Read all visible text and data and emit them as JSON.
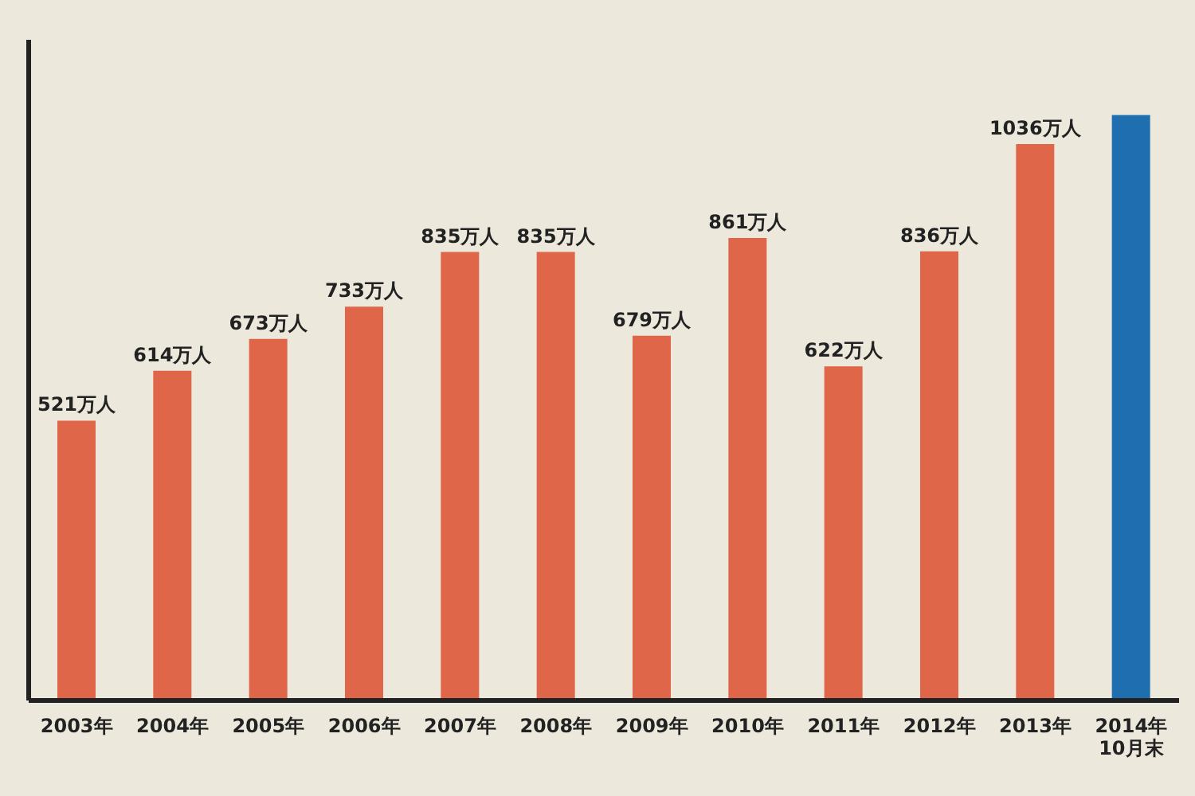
{
  "chart_data": {
    "type": "bar",
    "categories": [
      "2003年",
      "2004年",
      "2005年",
      "2006年",
      "2007年",
      "2008年",
      "2009年",
      "2010年",
      "2011年",
      "2012年",
      "2013年",
      "2014年\n10月末"
    ],
    "values": [
      521,
      614,
      673,
      733,
      835,
      835,
      679,
      861,
      622,
      836,
      1036,
      1090
    ],
    "colors": [
      "#e0664a",
      "#e0664a",
      "#e0664a",
      "#e0664a",
      "#e0664a",
      "#e0664a",
      "#e0664a",
      "#e0664a",
      "#e0664a",
      "#e0664a",
      "#e0664a",
      "#1f6fb0"
    ],
    "value_labels": [
      "521万人",
      "614万人",
      "673万人",
      "733万人",
      "835万人",
      "835万人",
      "679万人",
      "861万人",
      "622万人",
      "836万人",
      "1036万人",
      null
    ],
    "ylim": [
      0,
      1230
    ],
    "tick_labels": "x"
  }
}
